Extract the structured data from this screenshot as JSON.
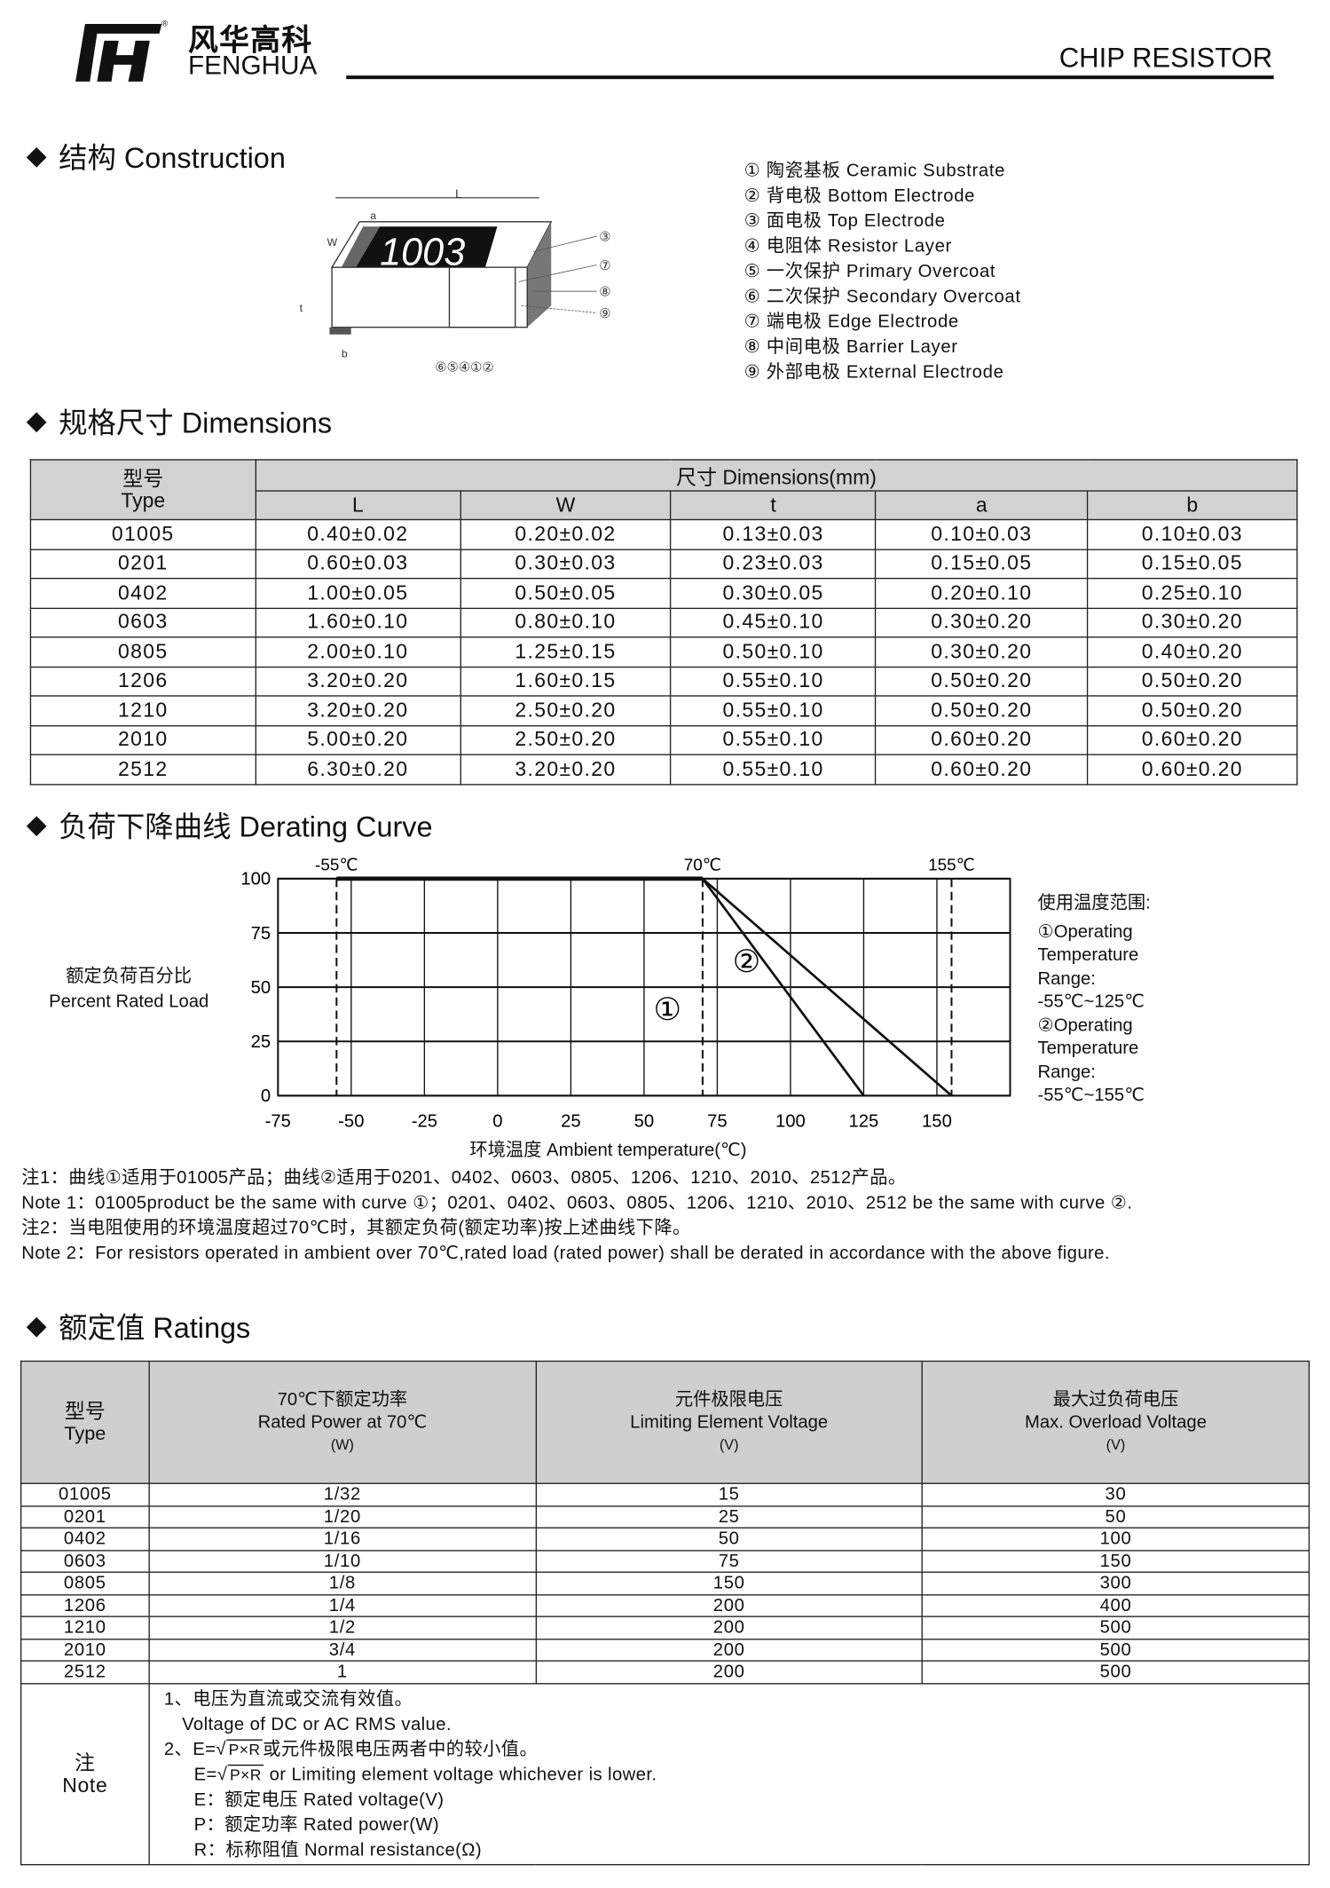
{
  "header": {
    "brand_cn": "风华高科",
    "brand_en": "FENGHUA",
    "title": "CHIP RESISTOR"
  },
  "construction": {
    "heading": "结构 Construction",
    "diagram_labels": {
      "L": "L",
      "a": "a",
      "W": "W",
      "t": "t",
      "b": "b",
      "marking": "1003",
      "bottom_numbers": "⑥⑤④①②",
      "right_numbers": [
        "③",
        "⑦",
        "⑧",
        "⑨"
      ]
    },
    "legend": [
      "① 陶瓷基板 Ceramic Substrate",
      "② 背电极 Bottom Electrode",
      "③ 面电极 Top Electrode",
      "④ 电阻体 Resistor Layer",
      "⑤ 一次保护 Primary Overcoat",
      "⑥ 二次保护 Secondary Overcoat",
      "⑦ 端电极 Edge Electrode",
      "⑧ 中间电极 Barrier Layer",
      "⑨ 外部电极 External Electrode"
    ]
  },
  "dimensions": {
    "heading": "规格尺寸 Dimensions",
    "type_header_cn": "型号",
    "type_header_en": "Type",
    "group_header": "尺寸 Dimensions(mm)",
    "columns": [
      "L",
      "W",
      "t",
      "a",
      "b"
    ],
    "rows": [
      [
        "01005",
        "0.40±0.02",
        "0.20±0.02",
        "0.13±0.03",
        "0.10±0.03",
        "0.10±0.03"
      ],
      [
        "0201",
        "0.60±0.03",
        "0.30±0.03",
        "0.23±0.03",
        "0.15±0.05",
        "0.15±0.05"
      ],
      [
        "0402",
        "1.00±0.05",
        "0.50±0.05",
        "0.30±0.05",
        "0.20±0.10",
        "0.25±0.10"
      ],
      [
        "0603",
        "1.60±0.10",
        "0.80±0.10",
        "0.45±0.10",
        "0.30±0.20",
        "0.30±0.20"
      ],
      [
        "0805",
        "2.00±0.10",
        "1.25±0.15",
        "0.50±0.10",
        "0.30±0.20",
        "0.40±0.20"
      ],
      [
        "1206",
        "3.20±0.20",
        "1.60±0.15",
        "0.55±0.10",
        "0.50±0.20",
        "0.50±0.20"
      ],
      [
        "1210",
        "3.20±0.20",
        "2.50±0.20",
        "0.55±0.10",
        "0.50±0.20",
        "0.50±0.20"
      ],
      [
        "2010",
        "5.00±0.20",
        "2.50±0.20",
        "0.55±0.10",
        "0.60±0.20",
        "0.60±0.20"
      ],
      [
        "2512",
        "6.30±0.20",
        "3.20±0.20",
        "0.55±0.10",
        "0.60±0.20",
        "0.60±0.20"
      ]
    ]
  },
  "derating": {
    "heading": "负荷下降曲线 Derating Curve",
    "ylabel_cn": "额定负荷百分比",
    "ylabel_en": "Percent Rated Load",
    "xlabel": "环境温度 Ambient temperature(℃)",
    "top_labels": [
      "-55℃",
      "70℃",
      "155℃"
    ],
    "range_title": "使用温度范围:",
    "range_lines": [
      "①Operating",
      "Temperature",
      "Range:",
      "-55℃~125℃",
      "②Operating",
      "Temperature",
      "Range:",
      "-55℃~155℃"
    ],
    "notes": [
      "注1：曲线①适用于01005产品；曲线②适用于0201、0402、0603、0805、1206、1210、2010、2512产品。",
      "Note 1：01005product be the same with curve ①；0201、0402、0603、0805、1206、1210、2010、2512 be the same with curve ②.",
      "注2：当电阻使用的环境温度超过70℃时，其额定负荷(额定功率)按上述曲线下降。",
      "Note 2：For resistors operated in ambient over 70℃,rated load (rated power) shall be derated in accordance with the above figure."
    ]
  },
  "chart_data": {
    "type": "line",
    "xlabel": "环境温度 Ambient temperature(℃)",
    "ylabel": "额定负荷百分比 Percent Rated Load",
    "xlim": [
      -75,
      175
    ],
    "ylim": [
      0,
      100
    ],
    "xticks": [
      "-75",
      "-50",
      "-25",
      "0",
      "25",
      "50",
      "75",
      "100",
      "125",
      "150"
    ],
    "yticks": [
      "0",
      "25",
      "50",
      "75",
      "100"
    ],
    "grid": true,
    "reference_lines_x": [
      -55,
      70,
      155
    ],
    "series": [
      {
        "name": "①",
        "x": [
          -55,
          70,
          125
        ],
        "y": [
          100,
          100,
          0
        ]
      },
      {
        "name": "②",
        "x": [
          -55,
          70,
          155
        ],
        "y": [
          100,
          100,
          0
        ]
      }
    ]
  },
  "ratings": {
    "heading": "额定值  Ratings",
    "headers": [
      {
        "cn": "型号",
        "en": "Type",
        "unit": ""
      },
      {
        "cn": "70℃下额定功率",
        "en": "Rated Power at 70℃",
        "unit": "(W)"
      },
      {
        "cn": "元件极限电压",
        "en": "Limiting Element Voltage",
        "unit": "(V)"
      },
      {
        "cn": "最大过负荷电压",
        "en": "Max. Overload Voltage",
        "unit": "(V)"
      }
    ],
    "rows": [
      [
        "01005",
        "1/32",
        "15",
        "30"
      ],
      [
        "0201",
        "1/20",
        "25",
        "50"
      ],
      [
        "0402",
        "1/16",
        "50",
        "100"
      ],
      [
        "0603",
        "1/10",
        "75",
        "150"
      ],
      [
        "0805",
        "1/8",
        "150",
        "300"
      ],
      [
        "1206",
        "1/4",
        "200",
        "400"
      ],
      [
        "1210",
        "1/2",
        "200",
        "500"
      ],
      [
        "2010",
        "3/4",
        "200",
        "500"
      ],
      [
        "2512",
        "1",
        "200",
        "500"
      ]
    ],
    "note_label_cn": "注",
    "note_label_en": "Note",
    "notes": {
      "n1_cn": "1、电压为直流或交流有效值。",
      "n1_en": "Voltage of DC or AC RMS value.",
      "n2_prefix": "2、E=√",
      "sqrt_expr": "P×R",
      "n2_cn_suffix": "或元件极限电压两者中的较小值。",
      "n2_en_prefix": "E=√",
      "n2_en_suffix": " or Limiting element voltage whichever is lower.",
      "e": "E：额定电压 Rated voltage(V)",
      "p": "P：额定功率 Rated power(W)",
      "r": "R：标称阻值 Normal resistance(Ω)"
    }
  }
}
